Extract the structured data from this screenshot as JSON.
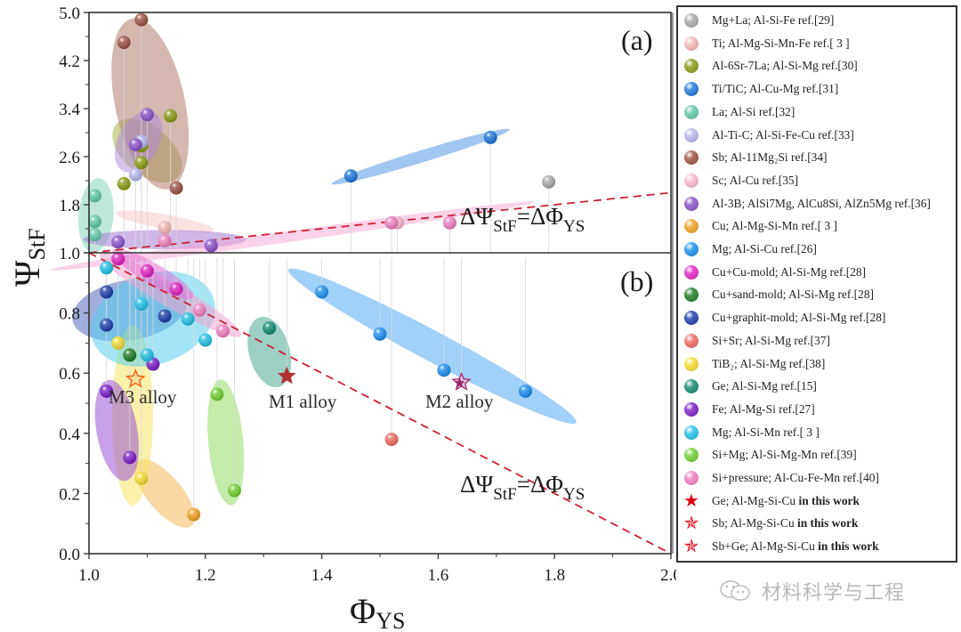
{
  "chart_data": {
    "type": "scatter",
    "title": "",
    "xlabel": "Φ_YS",
    "ylabel": "Ψ_StF",
    "xlim": [
      1.0,
      2.0
    ],
    "x_ticks": [
      "1.0",
      "1.2",
      "1.4",
      "1.6",
      "1.8",
      "2.0"
    ],
    "x_tick_values": [
      1.0,
      1.2,
      1.4,
      1.6,
      1.8,
      2.0
    ],
    "panels": [
      {
        "label": "(a)",
        "ylim": [
          1.0,
          5.0
        ],
        "y_ticks": [
          "1.0",
          "1.8",
          "2.6",
          "3.4",
          "4.2",
          "5.0"
        ],
        "y_tick_values": [
          1.0,
          1.8,
          2.6,
          3.4,
          4.2,
          5.0
        ],
        "reference_line": {
          "label": "ΔΨ_StF=ΔΦ_YS",
          "from": [
            1.0,
            1.0
          ],
          "to": [
            2.0,
            2.0
          ],
          "style": "dashed",
          "color": "#cc2233"
        }
      },
      {
        "label": "(b)",
        "ylim": [
          0.0,
          1.0
        ],
        "y_ticks": [
          "0.0",
          "0.2",
          "0.4",
          "0.6",
          "0.8",
          "1.0"
        ],
        "y_tick_values": [
          0.0,
          0.2,
          0.4,
          0.6,
          0.8,
          1.0
        ],
        "reference_line": {
          "label": "ΔΨ_StF=ΔΦ_YS",
          "from": [
            1.0,
            1.0
          ],
          "to": [
            2.0,
            0.0
          ],
          "style": "dashed",
          "color": "#cc2233"
        }
      }
    ],
    "annotations": [
      {
        "text": "M1 alloy",
        "x": 1.34,
        "y": 0.59
      },
      {
        "text": "M2 alloy",
        "x": 1.64,
        "y": 0.57
      },
      {
        "text": "M3 alloy",
        "x": 1.08,
        "y": 0.58
      }
    ],
    "series": [
      {
        "name": "Mg+La; Al-Si-Fe ref.[29]",
        "color": "#a8a8a8",
        "marker": "ball",
        "points": [
          [
            1.79,
            2.18
          ]
        ]
      },
      {
        "name": "Ti; Al-Mg-Si-Mn-Fe ref.[ 3 ]",
        "color": "#f5b5b5",
        "marker": "ball",
        "points": [
          [
            1.13,
            1.42
          ]
        ],
        "ellipse": {
          "cx": 1.13,
          "cy": 1.52,
          "rx": 0.085,
          "ry": 0.12,
          "angle": 10
        }
      },
      {
        "name": "Al-6Sr-7La; Al-Si-Mg ref.[30]",
        "color": "#8a9a10",
        "marker": "ball",
        "points": [
          [
            1.06,
            2.15
          ],
          [
            1.09,
            2.5
          ],
          [
            1.09,
            2.78
          ],
          [
            1.14,
            3.28
          ]
        ],
        "ellipse": {
          "cx": 1.1,
          "cy": 2.7,
          "rx": 0.07,
          "ry": 0.4,
          "angle": 40
        }
      },
      {
        "name": "Ti/TiC; Al-Cu-Mg ref.[31]",
        "color": "#1a74d9",
        "marker": "ball",
        "points": [
          [
            1.45,
            2.28
          ],
          [
            1.69,
            2.92
          ]
        ],
        "ellipse": {
          "cx": 1.57,
          "cy": 2.6,
          "rx": 0.16,
          "ry": 0.1,
          "angle": -17
        }
      },
      {
        "name": "La; Al-Si ref.[32]",
        "color": "#5fc8a8",
        "marker": "ball",
        "points": [
          [
            1.01,
            1.95
          ],
          [
            1.01,
            1.52
          ],
          [
            1.01,
            1.3
          ]
        ],
        "ellipse": {
          "cx": 1.012,
          "cy": 1.62,
          "rx": 0.03,
          "ry": 0.62,
          "angle": 5
        }
      },
      {
        "name": "Al-Ti-C; Al-Si-Fe-Cu ref.[33]",
        "color": "#b5b5ee",
        "marker": "ball",
        "points": [
          [
            1.09,
            2.85
          ],
          [
            1.08,
            2.3
          ]
        ]
      },
      {
        "name": "Sb; Al-11Mg₂Si ref.[34]",
        "color": "#9a5040",
        "marker": "ball",
        "points": [
          [
            1.06,
            4.5
          ],
          [
            1.09,
            4.88
          ],
          [
            1.15,
            2.08
          ]
        ],
        "ellipse": {
          "cx": 1.105,
          "cy": 3.48,
          "rx": 0.06,
          "ry": 1.45,
          "angle": -12
        }
      },
      {
        "name": "Sc; Al-Cu ref.[35]",
        "color": "#f8b8cc",
        "marker": "ball",
        "points": [
          [
            1.53,
            1.5
          ],
          [
            1.62,
            1.5
          ]
        ]
      },
      {
        "name": "Al-3B; AlSi7Mg, AlCu8Si, AlZn5Mg ref.[36]",
        "color": "#8a50c8",
        "marker": "ball",
        "points": [
          [
            1.05,
            1.18
          ],
          [
            1.21,
            1.12
          ],
          [
            1.1,
            3.3
          ],
          [
            1.08,
            2.8
          ]
        ],
        "ellipse": {
          "cx": 1.13,
          "cy": 1.22,
          "rx": 0.14,
          "ry": 0.16,
          "angle": 0
        }
      },
      {
        "name": "Cu; Al-Mg-Si-Mn ref.[ 3 ]",
        "color": "#f2a020",
        "marker": "ball",
        "points": [
          [
            1.18,
            0.13
          ]
        ],
        "ellipse": {
          "cx": 1.13,
          "cy": 0.2,
          "rx": 0.03,
          "ry": 0.14,
          "angle": -40
        }
      },
      {
        "name": "Mg; Al-Si-Cu ref.[26]",
        "color": "#1a8ef0",
        "marker": "ball",
        "points": [
          [
            1.4,
            0.87
          ],
          [
            1.5,
            0.73
          ],
          [
            1.75,
            0.54
          ],
          [
            1.61,
            0.61
          ]
        ],
        "ellipse": {
          "cx": 1.59,
          "cy": 0.69,
          "rx": 0.28,
          "ry": 0.05,
          "angle": 28
        }
      },
      {
        "name": "Cu+Cu-mold; Al-Si-Mg ref.[28]",
        "color": "#e020c0",
        "marker": "ball",
        "points": [
          [
            1.05,
            0.98
          ],
          [
            1.1,
            0.94
          ],
          [
            1.15,
            0.88
          ]
        ]
      },
      {
        "name": "Cu+sand-mold; Al-Si-Mg ref.[28]",
        "color": "#1a7a20",
        "marker": "ball",
        "points": [
          [
            1.07,
            0.66
          ]
        ]
      },
      {
        "name": "Cu+graphit-mold; Al-Si-Mg ref.[28]",
        "color": "#1a3aa8",
        "marker": "ball",
        "points": [
          [
            1.03,
            0.87
          ],
          [
            1.13,
            0.79
          ],
          [
            1.03,
            0.76
          ]
        ],
        "ellipse": {
          "cx": 1.07,
          "cy": 0.81,
          "rx": 0.1,
          "ry": 0.1,
          "angle": -10
        }
      },
      {
        "name": "Si+Sr; Al-Si-Mg ref.[37]",
        "color": "#ee6a60",
        "marker": "ball",
        "points": [
          [
            1.52,
            0.38
          ]
        ]
      },
      {
        "name": "TiB₂; Al-Si-Mg ref.[38]",
        "color": "#f5dc30",
        "marker": "ball",
        "points": [
          [
            1.05,
            0.7
          ],
          [
            1.09,
            0.25
          ]
        ],
        "ellipse": {
          "cx": 1.075,
          "cy": 0.46,
          "rx": 0.035,
          "ry": 0.3,
          "angle": 0
        }
      },
      {
        "name": "Ge; Al-Si-Mg ref.[15]",
        "color": "#108a70",
        "marker": "ball",
        "points": [
          [
            1.31,
            0.75
          ]
        ],
        "ellipse": {
          "cx": 1.31,
          "cy": 0.67,
          "rx": 0.035,
          "ry": 0.12,
          "angle": -15
        }
      },
      {
        "name": "Fe; Al-Mg-Si ref.[27]",
        "color": "#7a1ac8",
        "marker": "ball",
        "points": [
          [
            1.03,
            0.54
          ],
          [
            1.07,
            0.32
          ],
          [
            1.11,
            0.63
          ]
        ],
        "ellipse": {
          "cx": 1.048,
          "cy": 0.41,
          "rx": 0.035,
          "ry": 0.17,
          "angle": -10
        }
      },
      {
        "name": "Mg; Al-Si-Mn ref.[ 3 ]",
        "color": "#20c0e8",
        "marker": "ball",
        "points": [
          [
            1.03,
            0.95
          ],
          [
            1.09,
            0.83
          ],
          [
            1.17,
            0.78
          ],
          [
            1.2,
            0.71
          ],
          [
            1.1,
            0.66
          ]
        ],
        "ellipse": {
          "cx": 1.11,
          "cy": 0.78,
          "rx": 0.11,
          "ry": 0.15,
          "angle": -20
        }
      },
      {
        "name": "Si+Mg; Al-Si-Mg-Mn ref.[39]",
        "color": "#70d030",
        "marker": "ball",
        "points": [
          [
            1.22,
            0.53
          ],
          [
            1.25,
            0.21
          ]
        ],
        "ellipse": {
          "cx": 1.235,
          "cy": 0.37,
          "rx": 0.03,
          "ry": 0.21,
          "angle": -5
        }
      },
      {
        "name": "Si+pressure; Al-Cu-Fe-Mn ref.[40]",
        "color": "#f080c0",
        "marker": "ball",
        "points": [
          [
            1.19,
            0.81
          ],
          [
            1.23,
            0.74
          ],
          [
            1.13,
            1.2
          ],
          [
            1.52,
            1.5
          ],
          [
            1.62,
            1.5
          ]
        ],
        "ellipse": {
          "cx": 1.14,
          "cy": 0.86,
          "rx": 0.14,
          "ry": 0.04,
          "angle": 30
        }
      },
      {
        "name": "Ge; Al-Mg-Si-Cu in this work",
        "color": "#b03030",
        "marker": "star",
        "points": [
          [
            1.34,
            0.59
          ]
        ]
      },
      {
        "name": "Sb; Al-Mg-Si-Cu in this work",
        "color": "#a02060",
        "marker": "star-half",
        "points": [
          [
            1.64,
            0.57
          ]
        ]
      },
      {
        "name": "Sb+Ge; Al-Mg-Si-Cu in this work",
        "color": "#f06010",
        "marker": "star-open",
        "points": [
          [
            1.08,
            0.58
          ]
        ]
      }
    ]
  },
  "legend": {
    "items": [
      {
        "label_main": "Mg+La; Al-Si-Fe ref.[29]",
        "label_bold": "",
        "color": "#a8a8a8",
        "marker": "ball"
      },
      {
        "label_main": "Ti; Al-Mg-Si-Mn-Fe ref.[ 3 ]",
        "label_bold": "",
        "color": "#f5b5b5",
        "marker": "ball"
      },
      {
        "label_main": "Al-6Sr-7La; Al-Si-Mg ref.[30]",
        "label_bold": "",
        "color": "#8a9a10",
        "marker": "ball"
      },
      {
        "label_main": "Ti/TiC; Al-Cu-Mg ref.[31]",
        "label_bold": "",
        "color": "#1a74d9",
        "marker": "ball"
      },
      {
        "label_main": "La; Al-Si ref.[32]",
        "label_bold": "",
        "color": "#5fc8a8",
        "marker": "ball"
      },
      {
        "label_main": "Al-Ti-C; Al-Si-Fe-Cu ref.[33]",
        "label_bold": "",
        "color": "#b5b5ee",
        "marker": "ball"
      },
      {
        "label_main": "Sb; Al-11Mg₂Si ref.[34]",
        "label_bold": "",
        "color": "#9a5040",
        "marker": "ball"
      },
      {
        "label_main": "Sc; Al-Cu ref.[35]",
        "label_bold": "",
        "color": "#f8b8cc",
        "marker": "ball"
      },
      {
        "label_main": "Al-3B; AlSi7Mg, AlCu8Si, AlZn5Mg ref.[36]",
        "label_bold": "",
        "color": "#8a50c8",
        "marker": "ball"
      },
      {
        "label_main": "Cu; Al-Mg-Si-Mn ref.[ 3 ]",
        "label_bold": "",
        "color": "#f2a020",
        "marker": "ball"
      },
      {
        "label_main": "Mg; Al-Si-Cu ref.[26]",
        "label_bold": "",
        "color": "#1a8ef0",
        "marker": "ball"
      },
      {
        "label_main": "Cu+Cu-mold; Al-Si-Mg ref.[28]",
        "label_bold": "",
        "color": "#e020c0",
        "marker": "ball"
      },
      {
        "label_main": "Cu+sand-mold; Al-Si-Mg ref.[28]",
        "label_bold": "",
        "color": "#1a7a20",
        "marker": "ball"
      },
      {
        "label_main": "Cu+graphit-mold; Al-Si-Mg ref.[28]",
        "label_bold": "",
        "color": "#1a3aa8",
        "marker": "ball"
      },
      {
        "label_main": "Si+Sr; Al-Si-Mg ref.[37]",
        "label_bold": "",
        "color": "#ee6a60",
        "marker": "ball"
      },
      {
        "label_main": "TiB₂; Al-Si-Mg ref.[38]",
        "label_bold": "",
        "color": "#f5dc30",
        "marker": "ball"
      },
      {
        "label_main": "Ge; Al-Si-Mg ref.[15]",
        "label_bold": "",
        "color": "#108a70",
        "marker": "ball"
      },
      {
        "label_main": "Fe; Al-Mg-Si ref.[27]",
        "label_bold": "",
        "color": "#7a1ac8",
        "marker": "ball"
      },
      {
        "label_main": "Mg; Al-Si-Mn ref.[ 3 ]",
        "label_bold": "",
        "color": "#20c0e8",
        "marker": "ball"
      },
      {
        "label_main": "Si+Mg; Al-Si-Mg-Mn ref.[39]",
        "label_bold": "",
        "color": "#70d030",
        "marker": "ball"
      },
      {
        "label_main": "Si+pressure; Al-Cu-Fe-Mn ref.[40]",
        "label_bold": "",
        "color": "#f080c0",
        "marker": "ball"
      },
      {
        "label_main": "Ge; Al-Mg-Si-Cu ",
        "label_bold": "in this work",
        "color": "#e00010",
        "marker": "star"
      },
      {
        "label_main": "Sb; Al-Mg-Si-Cu ",
        "label_bold": "in this work",
        "color": "#e00010",
        "marker": "star-half"
      },
      {
        "label_main": "Sb+Ge; Al-Mg-Si-Cu ",
        "label_bold": "in this work",
        "color": "#e00010",
        "marker": "star-open"
      }
    ]
  },
  "axis_titles": {
    "x_main": "Φ",
    "x_sub": "YS",
    "y_main": "Ψ",
    "y_sub": "StF"
  },
  "equation": {
    "delta_psi": "ΔΨ",
    "sub1": "StF",
    "eq": "=ΔΦ",
    "sub2": "YS"
  },
  "watermark": {
    "text": "材料科学与工程",
    "icon": "wechat-icon"
  }
}
